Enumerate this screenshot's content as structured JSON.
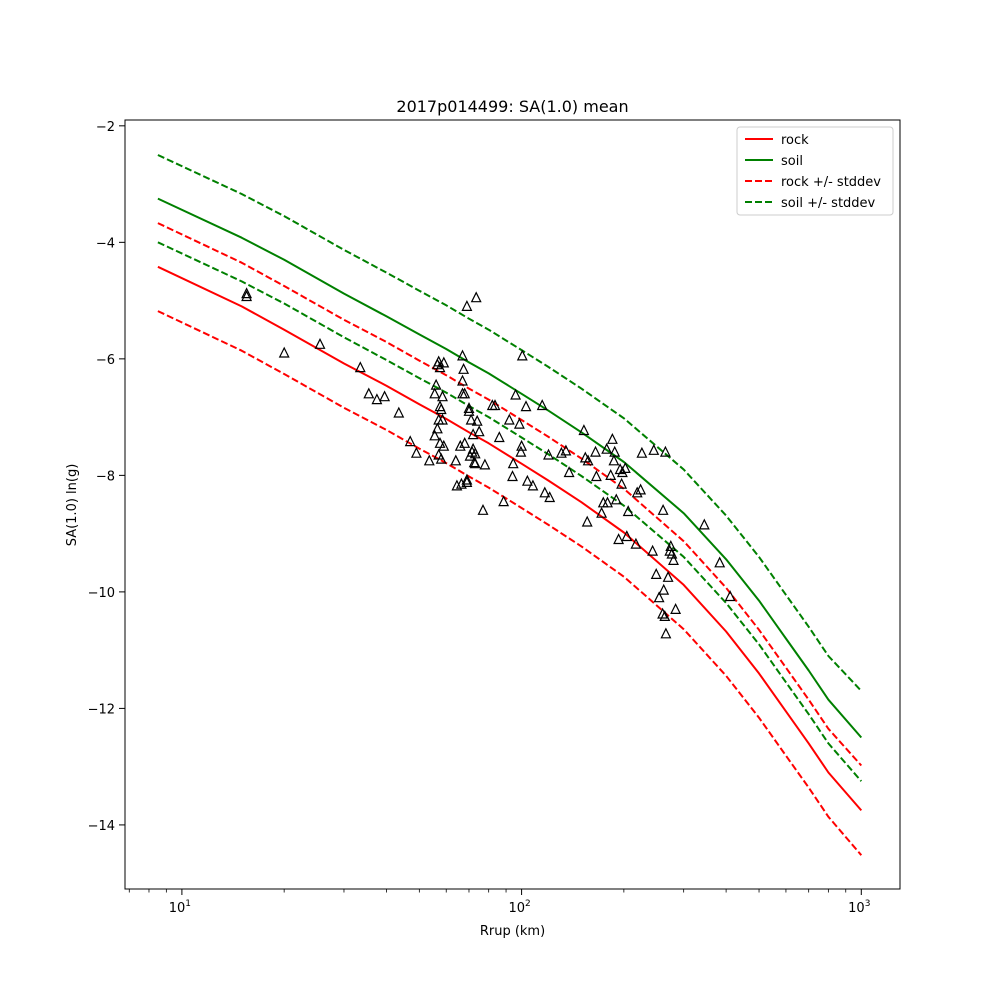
{
  "chart_data": {
    "type": "scatter",
    "title": "2017p014499: SA(1.0) mean",
    "xlabel": "Rrup (km)",
    "ylabel": "SA(1.0) ln(g)",
    "xscale": "log",
    "xlim": [
      6.8,
      1300
    ],
    "ylim": [
      -15.1,
      -1.9
    ],
    "yticks": [
      -14,
      -12,
      -10,
      -8,
      -6,
      -4,
      -2
    ],
    "xticks": [
      {
        "value": 10,
        "base": "10",
        "exp": "1"
      },
      {
        "value": 100,
        "base": "10",
        "exp": "2"
      },
      {
        "value": 1000,
        "base": "10",
        "exp": "3"
      }
    ],
    "legend_position": "top-right",
    "colors": {
      "rock": "#ff0000",
      "soil": "#008000",
      "points": "#000000"
    },
    "series": [
      {
        "name": "rock",
        "style": "solid",
        "color": "#ff0000",
        "x": [
          8.5,
          15,
          20,
          30,
          40,
          50,
          60,
          70,
          80,
          100,
          120,
          150,
          200,
          300,
          400,
          500,
          600,
          700,
          800,
          1000
        ],
        "y": [
          -4.42,
          -5.1,
          -5.5,
          -6.08,
          -6.46,
          -6.78,
          -7.03,
          -7.26,
          -7.45,
          -7.8,
          -8.09,
          -8.46,
          -8.98,
          -9.88,
          -10.68,
          -11.4,
          -12.05,
          -12.6,
          -13.1,
          -13.75
        ]
      },
      {
        "name": "soil",
        "style": "solid",
        "color": "#008000",
        "x": [
          8.5,
          15,
          20,
          30,
          40,
          50,
          60,
          70,
          80,
          100,
          120,
          150,
          200,
          300,
          400,
          500,
          600,
          700,
          800,
          1000
        ],
        "y": [
          -3.25,
          -3.92,
          -4.3,
          -4.88,
          -5.27,
          -5.58,
          -5.83,
          -6.06,
          -6.25,
          -6.6,
          -6.89,
          -7.26,
          -7.77,
          -8.65,
          -9.44,
          -10.15,
          -10.8,
          -11.35,
          -11.85,
          -12.5
        ]
      },
      {
        "name": "rock +/- stddev",
        "style": "dashed",
        "color": "#ff0000",
        "x": [
          8.5,
          15,
          20,
          30,
          40,
          50,
          60,
          70,
          80,
          100,
          120,
          150,
          200,
          300,
          400,
          500,
          600,
          700,
          800,
          1000
        ],
        "y": [
          -3.67,
          -4.35,
          -4.75,
          -5.33,
          -5.71,
          -6.03,
          -6.28,
          -6.51,
          -6.7,
          -7.05,
          -7.34,
          -7.71,
          -8.23,
          -9.13,
          -9.93,
          -10.65,
          -11.3,
          -11.85,
          -12.35,
          -12.98
        ]
      },
      {
        "name": "rock +/- stddev (lower)",
        "style": "dashed",
        "color": "#ff0000",
        "x": [
          8.5,
          15,
          20,
          30,
          40,
          50,
          60,
          70,
          80,
          100,
          120,
          150,
          200,
          300,
          400,
          500,
          600,
          700,
          800,
          1000
        ],
        "y": [
          -5.18,
          -5.86,
          -6.26,
          -6.84,
          -7.22,
          -7.54,
          -7.79,
          -8.02,
          -8.21,
          -8.56,
          -8.85,
          -9.22,
          -9.74,
          -10.64,
          -11.44,
          -12.16,
          -12.81,
          -13.36,
          -13.86,
          -14.52
        ]
      },
      {
        "name": "soil +/- stddev",
        "style": "dashed",
        "color": "#008000",
        "x": [
          8.5,
          15,
          20,
          30,
          40,
          50,
          60,
          70,
          80,
          100,
          120,
          150,
          200,
          300,
          400,
          500,
          600,
          700,
          800,
          1000
        ],
        "y": [
          -2.5,
          -3.17,
          -3.55,
          -4.13,
          -4.52,
          -4.83,
          -5.08,
          -5.31,
          -5.5,
          -5.85,
          -6.14,
          -6.51,
          -7.02,
          -7.9,
          -8.69,
          -9.4,
          -10.05,
          -10.6,
          -11.1,
          -11.7
        ]
      },
      {
        "name": "soil +/- stddev (lower)",
        "style": "dashed",
        "color": "#008000",
        "x": [
          8.5,
          15,
          20,
          30,
          40,
          50,
          60,
          70,
          80,
          100,
          120,
          150,
          200,
          300,
          400,
          500,
          600,
          700,
          800,
          1000
        ],
        "y": [
          -4.0,
          -4.67,
          -5.05,
          -5.63,
          -6.02,
          -6.33,
          -6.58,
          -6.81,
          -7.0,
          -7.35,
          -7.64,
          -8.01,
          -8.52,
          -9.4,
          -10.19,
          -10.9,
          -11.55,
          -12.1,
          -12.6,
          -13.25
        ]
      }
    ],
    "legend": [
      {
        "label": "rock",
        "color": "#ff0000",
        "style": "solid"
      },
      {
        "label": "soil",
        "color": "#008000",
        "style": "solid"
      },
      {
        "label": "rock +/- stddev",
        "color": "#ff0000",
        "style": "dashed"
      },
      {
        "label": "soil +/- stddev",
        "color": "#008000",
        "style": "dashed"
      }
    ],
    "points": {
      "marker": "triangle-open",
      "x": [
        15.5,
        15.5,
        20,
        25.5,
        33.5,
        35.5,
        37.5,
        39.5,
        43.5,
        47,
        49,
        53.5,
        55.5,
        55.5,
        56,
        56.5,
        56.5,
        57,
        57,
        57,
        57.5,
        57.5,
        57.5,
        58,
        58,
        58.5,
        58.5,
        59,
        59,
        64,
        64.5,
        66,
        66.5,
        67,
        67,
        67,
        67.5,
        68,
        68,
        69,
        69,
        69,
        70,
        70,
        70.5,
        71,
        71.5,
        72,
        72,
        72.5,
        73,
        73,
        73.5,
        74,
        75,
        77,
        78,
        82,
        83.5,
        86,
        88.5,
        92,
        94,
        94.5,
        96,
        98.5,
        99.5,
        100,
        100.5,
        103,
        104,
        108,
        115,
        117,
        120,
        121,
        131,
        135,
        138,
        152.5,
        154,
        156,
        157,
        165,
        166,
        172,
        174,
        178,
        179,
        183,
        185,
        187,
        188,
        190,
        193,
        195,
        197,
        198,
        202,
        204,
        206,
        217,
        219,
        224,
        226,
        243,
        245,
        249,
        254,
        260,
        261,
        262,
        264,
        265,
        266,
        270,
        273,
        275,
        277,
        280,
        284,
        345,
        383,
        411
      ],
      "y": [
        -4.88,
        -4.93,
        -5.9,
        -5.75,
        -6.15,
        -6.6,
        -6.7,
        -6.65,
        -6.93,
        -7.42,
        -7.62,
        -7.75,
        -6.6,
        -7.32,
        -6.45,
        -7.2,
        -6.1,
        -6.05,
        -7.05,
        -7.65,
        -6.15,
        -6.82,
        -7.45,
        -6.87,
        -7.72,
        -6.65,
        -7.05,
        -7.5,
        -6.07,
        -7.75,
        -8.18,
        -7.5,
        -8.15,
        -6.6,
        -6.38,
        -5.95,
        -6.18,
        -6.6,
        -7.45,
        -5.1,
        -8.12,
        -8.08,
        -6.9,
        -6.85,
        -7.67,
        -7.05,
        -7.6,
        -7.3,
        -7.55,
        -7.78,
        -7.8,
        -7.63,
        -4.95,
        -7.07,
        -7.25,
        -8.6,
        -7.82,
        -6.8,
        -6.8,
        -7.35,
        -8.45,
        -7.05,
        -8.02,
        -7.8,
        -6.62,
        -7.12,
        -7.6,
        -7.5,
        -5.95,
        -6.82,
        -8.1,
        -8.18,
        -6.8,
        -8.3,
        -7.65,
        -8.38,
        -7.62,
        -7.58,
        -7.95,
        -7.23,
        -7.7,
        -8.8,
        -7.75,
        -7.6,
        -8.02,
        -8.65,
        -8.47,
        -7.55,
        -8.47,
        -8.0,
        -7.38,
        -7.75,
        -7.6,
        -8.42,
        -9.1,
        -7.9,
        -8.15,
        -7.95,
        -7.88,
        -9.05,
        -8.62,
        -9.18,
        -8.3,
        -8.25,
        -7.62,
        -9.3,
        -7.57,
        -9.7,
        -10.1,
        -10.38,
        -8.6,
        -9.97,
        -10.42,
        -7.6,
        -10.72,
        -9.75,
        -9.3,
        -9.22,
        -9.35,
        -9.46,
        -10.3,
        -8.85,
        -9.5,
        -10.08
      ]
    }
  }
}
